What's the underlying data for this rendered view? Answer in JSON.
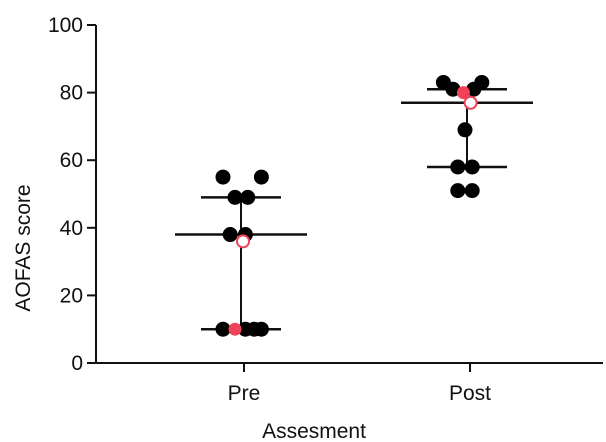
{
  "chart_data": {
    "type": "scatter",
    "xlabel": "Assesment",
    "ylabel": "AOFAS score",
    "ylim": [
      0,
      100
    ],
    "yticks": [
      0,
      20,
      40,
      60,
      80,
      100
    ],
    "categories": [
      "Pre",
      "Post"
    ],
    "groups": [
      {
        "category": "Pre",
        "median": 38,
        "q1": 10,
        "q3": 49,
        "points": [
          {
            "offset": -1,
            "value": 55
          },
          {
            "offset": -0.25,
            "value": 49
          },
          {
            "offset": 0.55,
            "value": 49
          },
          {
            "offset": 1.4,
            "value": 55
          },
          {
            "offset": -0.55,
            "value": 38
          },
          {
            "offset": 0.4,
            "value": 38
          },
          {
            "offset": -1,
            "value": 10
          },
          {
            "offset": 0.4,
            "value": 10
          },
          {
            "offset": 0.95,
            "value": 10
          },
          {
            "offset": 1.4,
            "value": 10
          }
        ],
        "highlight_filled": [
          {
            "offset": -0.25,
            "value": 10
          }
        ],
        "highlight_hollow": [
          {
            "offset": 0.25,
            "value": 36
          }
        ]
      },
      {
        "category": "Post",
        "median": 77,
        "q1": 58,
        "q3": 81,
        "points": [
          {
            "offset": -1.35,
            "value": 83
          },
          {
            "offset": -0.75,
            "value": 81
          },
          {
            "offset": 0.55,
            "value": 81
          },
          {
            "offset": 1.05,
            "value": 83
          },
          {
            "offset": 0,
            "value": 69
          },
          {
            "offset": -0.45,
            "value": 58
          },
          {
            "offset": 0.45,
            "value": 58
          },
          {
            "offset": -0.45,
            "value": 51
          },
          {
            "offset": 0.45,
            "value": 51
          }
        ],
        "highlight_filled": [
          {
            "offset": -0.1,
            "value": 80
          }
        ],
        "highlight_hollow": [
          {
            "offset": 0.35,
            "value": 77
          }
        ]
      }
    ],
    "colors": {
      "points": "#000000",
      "highlight": "#f0435a",
      "lines": "#111111"
    }
  }
}
